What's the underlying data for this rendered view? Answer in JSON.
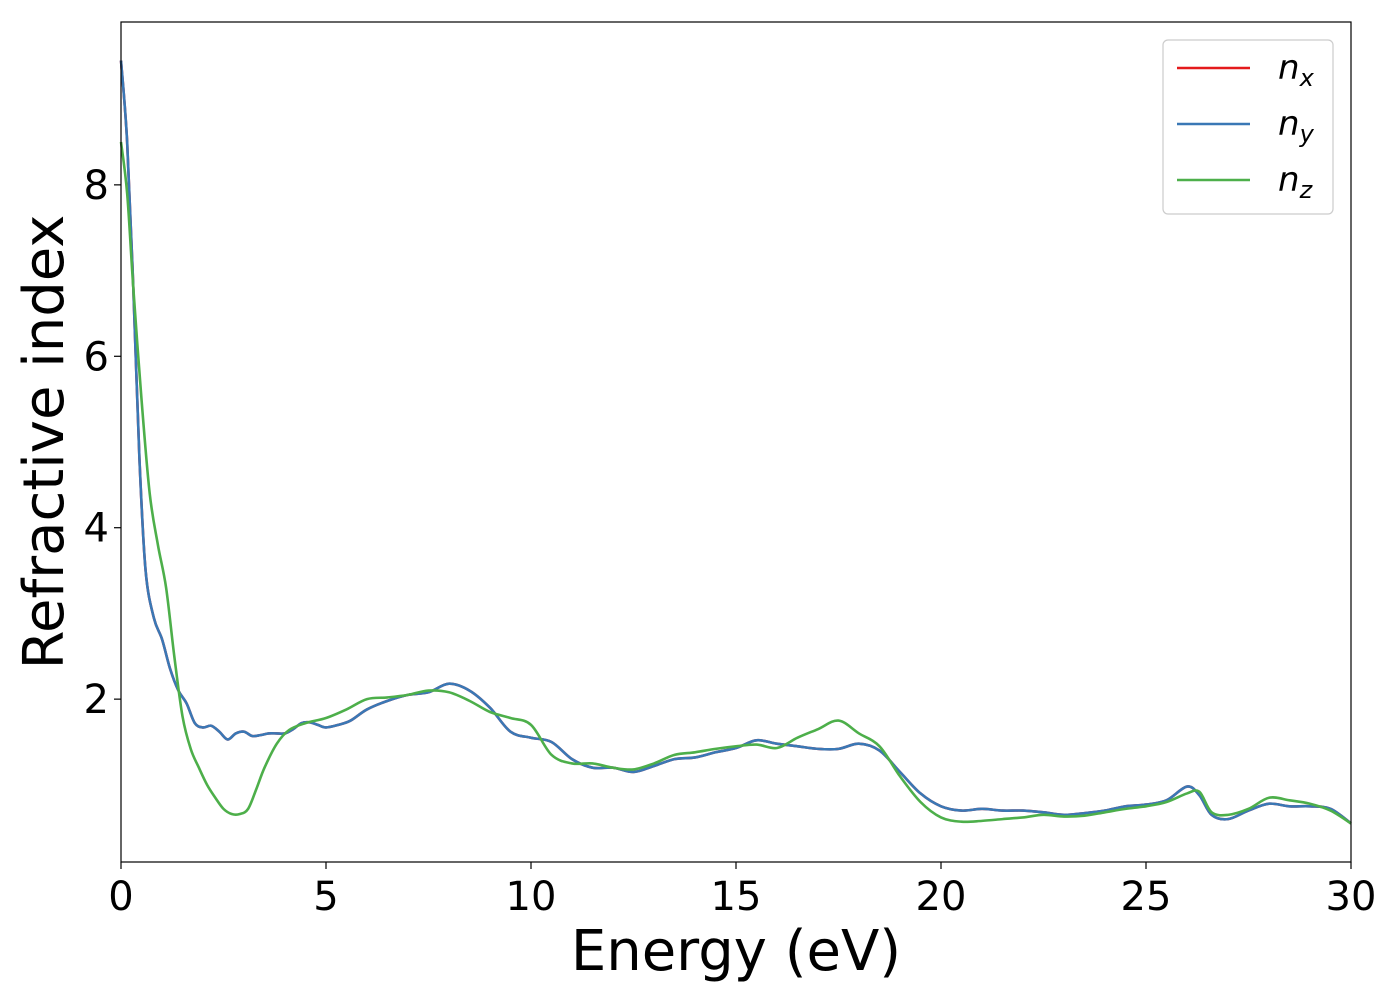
{
  "chart_data": {
    "type": "line",
    "title": "",
    "xlabel": "Energy (eV)",
    "ylabel": "Refractive index",
    "xlim": [
      0,
      30
    ],
    "ylim": [
      0.1,
      9.9
    ],
    "xticks": [
      0,
      5,
      10,
      15,
      20,
      25,
      30
    ],
    "yticks": [
      2,
      4,
      6,
      8
    ],
    "grid": false,
    "legend_position": "top-right",
    "series": [
      {
        "name": "n_x",
        "label_base": "n",
        "label_sub": "x",
        "color": "#e41a1c",
        "x": [
          0,
          0.15,
          0.3,
          0.45,
          0.6,
          0.8,
          1.0,
          1.2,
          1.4,
          1.6,
          1.8,
          2.0,
          2.2,
          2.4,
          2.6,
          2.8,
          3.0,
          3.2,
          3.4,
          3.6,
          3.8,
          4.0,
          4.2,
          4.4,
          4.6,
          4.8,
          5.0,
          5.3,
          5.6,
          6.0,
          6.5,
          7.0,
          7.5,
          8.0,
          8.5,
          9.0,
          9.5,
          10.0,
          10.5,
          11.0,
          11.5,
          12.0,
          12.5,
          13.0,
          13.5,
          14.0,
          14.5,
          15.0,
          15.5,
          16.0,
          16.5,
          17.0,
          17.5,
          18.0,
          18.5,
          19.0,
          19.5,
          20.0,
          20.5,
          21.0,
          21.5,
          22.0,
          22.5,
          23.0,
          23.5,
          24.0,
          24.5,
          25.0,
          25.5,
          26.0,
          26.3,
          26.6,
          27.0,
          27.5,
          28.0,
          28.5,
          29.0,
          29.5,
          30.0
        ],
        "y": [
          9.45,
          8.5,
          6.8,
          4.8,
          3.5,
          2.95,
          2.7,
          2.35,
          2.1,
          1.95,
          1.72,
          1.67,
          1.69,
          1.62,
          1.53,
          1.6,
          1.62,
          1.57,
          1.58,
          1.6,
          1.6,
          1.6,
          1.65,
          1.72,
          1.73,
          1.7,
          1.67,
          1.7,
          1.75,
          1.88,
          1.98,
          2.05,
          2.08,
          2.18,
          2.1,
          1.9,
          1.62,
          1.55,
          1.5,
          1.3,
          1.2,
          1.2,
          1.15,
          1.22,
          1.3,
          1.32,
          1.38,
          1.43,
          1.52,
          1.48,
          1.45,
          1.42,
          1.42,
          1.48,
          1.4,
          1.15,
          0.9,
          0.75,
          0.7,
          0.72,
          0.7,
          0.7,
          0.68,
          0.65,
          0.67,
          0.7,
          0.75,
          0.77,
          0.82,
          0.98,
          0.88,
          0.65,
          0.6,
          0.7,
          0.78,
          0.75,
          0.75,
          0.72,
          0.55
        ]
      },
      {
        "name": "n_y",
        "label_base": "n",
        "label_sub": "y",
        "color": "#3a78b5",
        "x": [
          0,
          0.15,
          0.3,
          0.45,
          0.6,
          0.8,
          1.0,
          1.2,
          1.4,
          1.6,
          1.8,
          2.0,
          2.2,
          2.4,
          2.6,
          2.8,
          3.0,
          3.2,
          3.4,
          3.6,
          3.8,
          4.0,
          4.2,
          4.4,
          4.6,
          4.8,
          5.0,
          5.3,
          5.6,
          6.0,
          6.5,
          7.0,
          7.5,
          8.0,
          8.5,
          9.0,
          9.5,
          10.0,
          10.5,
          11.0,
          11.5,
          12.0,
          12.5,
          13.0,
          13.5,
          14.0,
          14.5,
          15.0,
          15.5,
          16.0,
          16.5,
          17.0,
          17.5,
          18.0,
          18.5,
          19.0,
          19.5,
          20.0,
          20.5,
          21.0,
          21.5,
          22.0,
          22.5,
          23.0,
          23.5,
          24.0,
          24.5,
          25.0,
          25.5,
          26.0,
          26.3,
          26.6,
          27.0,
          27.5,
          28.0,
          28.5,
          29.0,
          29.5,
          30.0
        ],
        "y": [
          9.45,
          8.5,
          6.8,
          4.8,
          3.5,
          2.95,
          2.7,
          2.35,
          2.1,
          1.95,
          1.72,
          1.67,
          1.69,
          1.62,
          1.53,
          1.6,
          1.62,
          1.57,
          1.58,
          1.6,
          1.6,
          1.6,
          1.65,
          1.72,
          1.73,
          1.7,
          1.67,
          1.7,
          1.75,
          1.88,
          1.98,
          2.05,
          2.08,
          2.18,
          2.1,
          1.9,
          1.62,
          1.55,
          1.5,
          1.3,
          1.2,
          1.2,
          1.15,
          1.22,
          1.3,
          1.32,
          1.38,
          1.43,
          1.52,
          1.48,
          1.45,
          1.42,
          1.42,
          1.48,
          1.4,
          1.15,
          0.9,
          0.75,
          0.7,
          0.72,
          0.7,
          0.7,
          0.68,
          0.65,
          0.67,
          0.7,
          0.75,
          0.77,
          0.82,
          0.98,
          0.88,
          0.65,
          0.6,
          0.7,
          0.78,
          0.75,
          0.75,
          0.72,
          0.55
        ]
      },
      {
        "name": "n_z",
        "label_base": "n",
        "label_sub": "z",
        "color": "#4daf4a",
        "x": [
          0,
          0.15,
          0.3,
          0.5,
          0.7,
          0.9,
          1.1,
          1.3,
          1.5,
          1.7,
          1.9,
          2.1,
          2.3,
          2.5,
          2.7,
          2.9,
          3.1,
          3.3,
          3.5,
          3.8,
          4.1,
          4.5,
          5.0,
          5.5,
          6.0,
          6.5,
          7.0,
          7.5,
          8.0,
          8.5,
          9.0,
          9.5,
          10.0,
          10.5,
          11.0,
          11.5,
          12.0,
          12.5,
          13.0,
          13.5,
          14.0,
          14.5,
          15.0,
          15.5,
          16.0,
          16.5,
          17.0,
          17.5,
          18.0,
          18.5,
          19.0,
          19.5,
          20.0,
          20.5,
          21.0,
          21.5,
          22.0,
          22.5,
          23.0,
          23.5,
          24.0,
          24.5,
          25.0,
          25.5,
          26.0,
          26.3,
          26.6,
          27.0,
          27.5,
          28.0,
          28.5,
          29.0,
          29.5,
          30.0
        ],
        "y": [
          8.5,
          7.9,
          6.8,
          5.5,
          4.4,
          3.8,
          3.3,
          2.5,
          1.8,
          1.42,
          1.2,
          1.0,
          0.85,
          0.72,
          0.66,
          0.66,
          0.72,
          0.95,
          1.2,
          1.48,
          1.64,
          1.72,
          1.78,
          1.88,
          2.0,
          2.02,
          2.05,
          2.1,
          2.08,
          1.98,
          1.85,
          1.78,
          1.7,
          1.35,
          1.25,
          1.25,
          1.2,
          1.18,
          1.25,
          1.35,
          1.38,
          1.42,
          1.45,
          1.47,
          1.43,
          1.55,
          1.65,
          1.75,
          1.6,
          1.45,
          1.1,
          0.8,
          0.62,
          0.57,
          0.58,
          0.6,
          0.62,
          0.65,
          0.63,
          0.64,
          0.68,
          0.72,
          0.75,
          0.8,
          0.9,
          0.92,
          0.68,
          0.65,
          0.72,
          0.85,
          0.82,
          0.78,
          0.7,
          0.55
        ]
      }
    ]
  }
}
